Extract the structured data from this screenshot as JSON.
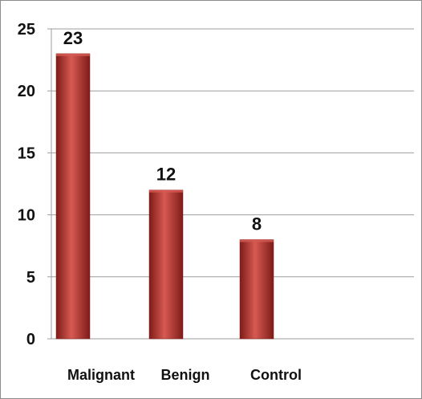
{
  "chart_data": {
    "type": "bar",
    "categories": [
      "Malignant",
      "Benign",
      "Control"
    ],
    "values": [
      23,
      12,
      8
    ],
    "data_labels": [
      "23",
      "12",
      "8"
    ],
    "yticks": [
      "0",
      "5",
      "10",
      "15",
      "20",
      "25"
    ],
    "ylim": [
      0,
      25
    ],
    "title": "",
    "xlabel": "",
    "ylabel": "",
    "grid": true,
    "legend": "none",
    "colors": {
      "bar": "#b8322e",
      "bar_dark": "#7e1b18",
      "bar_light": "#d65a52",
      "grid": "#9e9e9e",
      "axis": "#9e9e9e",
      "frame": "#8c8c8c"
    }
  }
}
